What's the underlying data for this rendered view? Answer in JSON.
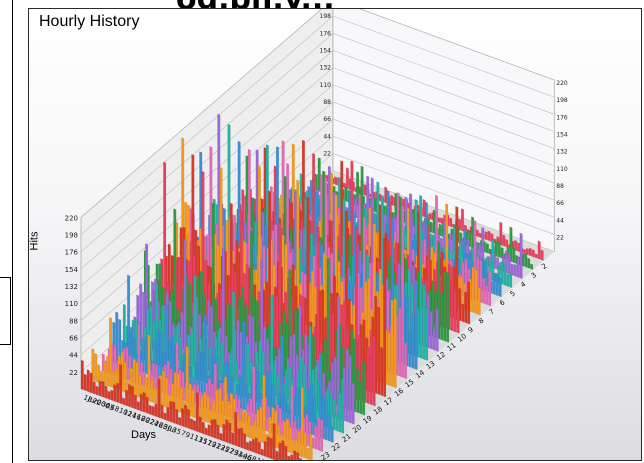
{
  "page": {
    "top_fragment": "og.ph.y..."
  },
  "chart_data": {
    "type": "bar",
    "title": "Hourly History",
    "xlabel": "Days",
    "ylabel": "Hits",
    "ylim": [
      0,
      220
    ],
    "y_ticks": [
      "22",
      "44",
      "66",
      "88",
      "110",
      "132",
      "154",
      "176",
      "198",
      "220"
    ],
    "x_tick_labels": [
      "18",
      "Jun",
      "20",
      "2003",
      "30",
      "4",
      "6",
      "8",
      "10",
      "12",
      "14",
      "16",
      "18",
      "20",
      "22",
      "24",
      "26",
      "28",
      "30",
      "Jul",
      "3",
      "5",
      "7",
      "9",
      "11",
      "13",
      "15",
      "17",
      "19",
      "21",
      "23",
      "25",
      "27",
      "29",
      "31",
      "Aug",
      "4",
      "6",
      "8",
      "10",
      "12",
      "14",
      "16",
      "18",
      "20",
      "22",
      "24",
      "26",
      "28",
      "30"
    ],
    "depth_tick_labels": [
      "24",
      "23",
      "22",
      "21",
      "20",
      "19",
      "18",
      "17",
      "16",
      "15",
      "14",
      "13",
      "12",
      "11",
      "10",
      "9",
      "8",
      "7",
      "6",
      "5",
      "4",
      "3",
      "2"
    ],
    "series_colors": [
      "#d83a2a",
      "#f39a1e",
      "#e06ab8",
      "#3a8fd4",
      "#24b3a5",
      "#9a6ad8",
      "#2f9b45",
      "#e84060"
    ],
    "rows": 24,
    "columns": 75,
    "row_peak_values": [
      40,
      70,
      60,
      90,
      110,
      130,
      150,
      170,
      180,
      200,
      190,
      160,
      150,
      140,
      130,
      120,
      110,
      90,
      80,
      60,
      50,
      40,
      30,
      20
    ]
  }
}
